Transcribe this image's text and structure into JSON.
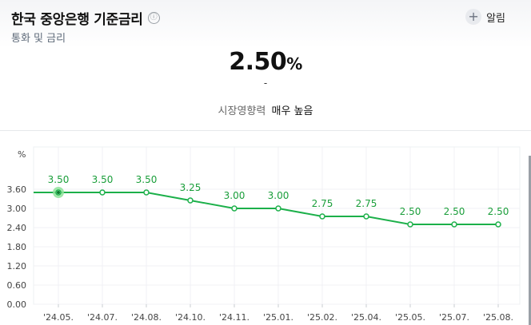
{
  "header": {
    "title": "한국 중앙은행 기준금리",
    "subtitle": "통화 및 금리",
    "alarm_label": "알림",
    "info_icon": "ⓘ",
    "plus_icon": "+"
  },
  "summary": {
    "rate": "2.50",
    "unit": "%",
    "change": "-",
    "impact_label": "시장영향력",
    "impact_value": "매우 높음"
  },
  "colors": {
    "line": "#1cb04a",
    "highlight": "#8ee39a"
  },
  "chart_data": {
    "type": "line",
    "ylabel": "%",
    "ylim": [
      0,
      3.6
    ],
    "yticks": [
      "3.60",
      "3.00",
      "2.40",
      "1.80",
      "1.20",
      "0.60",
      "0.00"
    ],
    "categories": [
      "'24.05.",
      "'24.07.",
      "'24.08.",
      "'24.10.",
      "'24.11.",
      "'25.01.",
      "'25.02.",
      "'25.04.",
      "'25.05.",
      "'25.07.",
      "'25.08."
    ],
    "values": [
      3.5,
      3.5,
      3.5,
      3.25,
      3.0,
      3.0,
      2.75,
      2.75,
      2.5,
      2.5,
      2.5
    ],
    "data_labels": [
      "3.50",
      "3.50",
      "3.50",
      "3.25",
      "3.00",
      "3.00",
      "2.75",
      "2.75",
      "2.50",
      "2.50",
      "2.50"
    ],
    "grid": true,
    "highlighted_index": 0
  }
}
